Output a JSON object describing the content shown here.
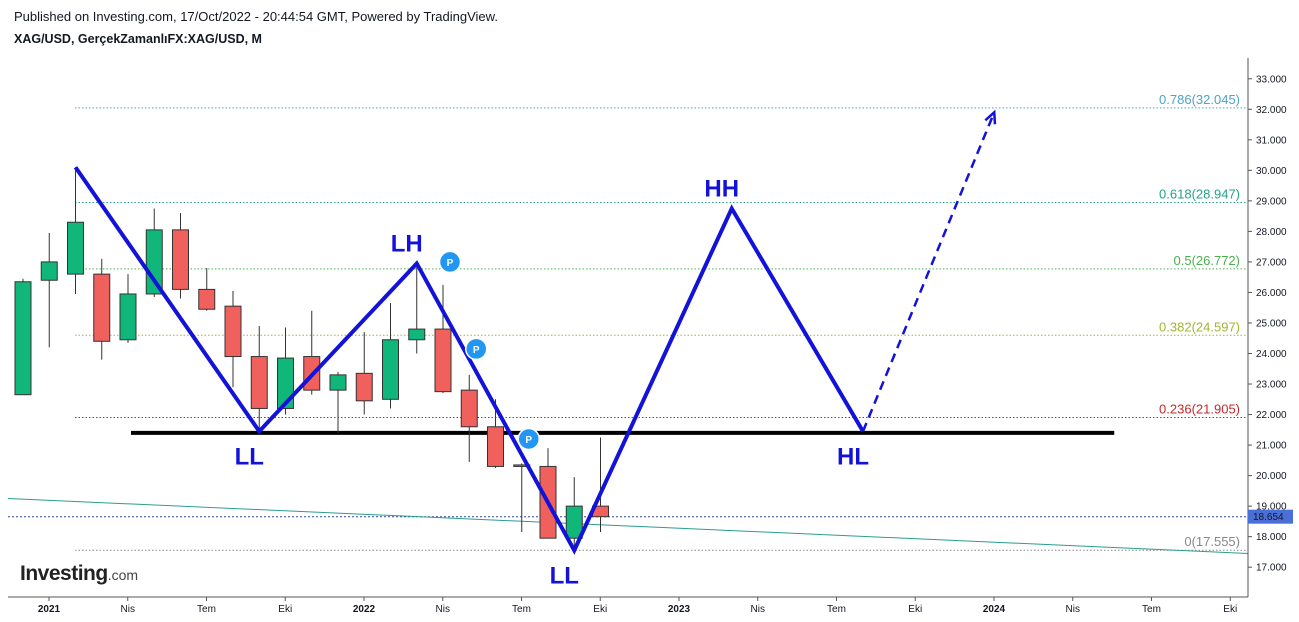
{
  "header": {
    "published": "Published on Investing.com, 17/Oct/2022 - 20:44:54 GMT, Powered by TradingView.",
    "symbol": "XAG/USD, GerçekZamanlıFX:XAG/USD, M"
  },
  "logo": {
    "main": "Investing",
    "sub": ".com"
  },
  "colors": {
    "up": "#11b77a",
    "down": "#f0605c",
    "wave": "#1212d8",
    "support": "#000000",
    "trend": "#2a9d8f",
    "price_badge": "#4b6fd8"
  },
  "chart_data": {
    "type": "candlestick",
    "timeframe": "M",
    "x_ticks": [
      "2021",
      "Nis",
      "Tem",
      "Eki",
      "2022",
      "Nis",
      "Tem",
      "Eki",
      "2023",
      "Nis",
      "Tem",
      "Eki",
      "2024",
      "Nis",
      "Tem",
      "Eki"
    ],
    "x_tick_bold": [
      true,
      false,
      false,
      false,
      true,
      false,
      false,
      false,
      true,
      false,
      false,
      false,
      true,
      false,
      false,
      false
    ],
    "y_ticks": [
      "17.000",
      "18.000",
      "19.000",
      "20.000",
      "21.000",
      "22.000",
      "23.000",
      "24.000",
      "25.000",
      "26.000",
      "27.000",
      "28.000",
      "29.000",
      "30.000",
      "31.000",
      "32.000",
      "33.000"
    ],
    "ylim": [
      16.4,
      33.5
    ],
    "candles": [
      {
        "m": "2020-12",
        "o": 22.65,
        "h": 26.45,
        "l": 22.65,
        "c": 26.35
      },
      {
        "m": "2021-01",
        "o": 26.4,
        "h": 27.95,
        "l": 24.2,
        "c": 27.0
      },
      {
        "m": "2021-02",
        "o": 26.6,
        "h": 30.1,
        "l": 25.95,
        "c": 28.3
      },
      {
        "m": "2021-03",
        "o": 26.6,
        "h": 27.1,
        "l": 23.8,
        "c": 24.4
      },
      {
        "m": "2021-04",
        "o": 24.45,
        "h": 26.6,
        "l": 24.35,
        "c": 25.95
      },
      {
        "m": "2021-05",
        "o": 25.95,
        "h": 28.75,
        "l": 25.85,
        "c": 28.05
      },
      {
        "m": "2021-06",
        "o": 28.05,
        "h": 28.6,
        "l": 25.8,
        "c": 26.1
      },
      {
        "m": "2021-07",
        "o": 26.1,
        "h": 26.8,
        "l": 25.4,
        "c": 25.45
      },
      {
        "m": "2021-08",
        "o": 25.55,
        "h": 26.05,
        "l": 22.9,
        "c": 23.9
      },
      {
        "m": "2021-09",
        "o": 23.9,
        "h": 24.9,
        "l": 21.45,
        "c": 22.2
      },
      {
        "m": "2021-10",
        "o": 22.2,
        "h": 24.85,
        "l": 22.0,
        "c": 23.85
      },
      {
        "m": "2021-11",
        "o": 23.9,
        "h": 25.4,
        "l": 22.65,
        "c": 22.8
      },
      {
        "m": "2021-12",
        "o": 22.8,
        "h": 23.4,
        "l": 21.4,
        "c": 23.3
      },
      {
        "m": "2022-01",
        "o": 23.35,
        "h": 24.7,
        "l": 22.0,
        "c": 22.45
      },
      {
        "m": "2022-02",
        "o": 22.5,
        "h": 25.65,
        "l": 22.2,
        "c": 24.45
      },
      {
        "m": "2022-03",
        "o": 24.45,
        "h": 26.95,
        "l": 24.0,
        "c": 24.8
      },
      {
        "m": "2022-04",
        "o": 24.8,
        "h": 26.25,
        "l": 22.7,
        "c": 22.75
      },
      {
        "m": "2022-05",
        "o": 22.8,
        "h": 23.3,
        "l": 20.45,
        "c": 21.6
      },
      {
        "m": "2022-06",
        "o": 21.6,
        "h": 22.5,
        "l": 20.25,
        "c": 20.3
      },
      {
        "m": "2022-07",
        "o": 20.35,
        "h": 20.4,
        "l": 18.15,
        "c": 20.3
      },
      {
        "m": "2022-08",
        "o": 20.3,
        "h": 20.9,
        "l": 17.95,
        "c": 17.95
      },
      {
        "m": "2022-09",
        "o": 17.95,
        "h": 19.95,
        "l": 17.55,
        "c": 19.0
      },
      {
        "m": "2022-10",
        "o": 19.0,
        "h": 21.25,
        "l": 18.15,
        "c": 18.654
      }
    ],
    "fib_levels": [
      {
        "ratio": "0.786",
        "value": 32.045,
        "label": "0.786(32.045)",
        "color": "#4fa3c7"
      },
      {
        "ratio": "0.618",
        "value": 28.947,
        "label": "0.618(28.947)",
        "color": "#26a08a"
      },
      {
        "ratio": "0.5",
        "value": 26.772,
        "label": "0.5(26.772)",
        "color": "#4caf50"
      },
      {
        "ratio": "0.382",
        "value": 24.597,
        "label": "0.382(24.597)",
        "color": "#a3b52e"
      },
      {
        "ratio": "0.236",
        "value": 21.905,
        "label": "0.236(21.905)",
        "color": "#c62828"
      },
      {
        "ratio": "0",
        "value": 17.555,
        "label": "0(17.555)",
        "color": "#888888"
      }
    ],
    "current_price": "18.654",
    "wave_points": [
      {
        "m": "2021-02",
        "v": 30.1,
        "label": ""
      },
      {
        "m": "2021-09",
        "v": 21.45,
        "label": "LL"
      },
      {
        "m": "2022-03",
        "v": 26.95,
        "label": "LH"
      },
      {
        "m": "2022-09",
        "v": 17.55,
        "label": "LL"
      },
      {
        "m": "2023-03",
        "v": 28.75,
        "label": "HH"
      },
      {
        "m": "2023-08",
        "v": 21.45,
        "label": "HL"
      }
    ],
    "projection": {
      "from_m": "2023-08",
      "from_v": 21.45,
      "to_m": "2024-01",
      "to_v": 31.9
    },
    "support_line": {
      "from_m": "2021-04",
      "to_m": "2024-05",
      "v": 21.4
    },
    "trend_line": {
      "from_m": "2020-12",
      "from_v": 19.25,
      "to_m": "2024-07",
      "to_v": 17.45
    },
    "pivot_markers": [
      {
        "m": "2022-04",
        "v": 27.0,
        "label": "P"
      },
      {
        "m": "2022-05",
        "v": 24.15,
        "label": "P"
      },
      {
        "m": "2022-07",
        "v": 21.2,
        "label": "P"
      }
    ]
  }
}
